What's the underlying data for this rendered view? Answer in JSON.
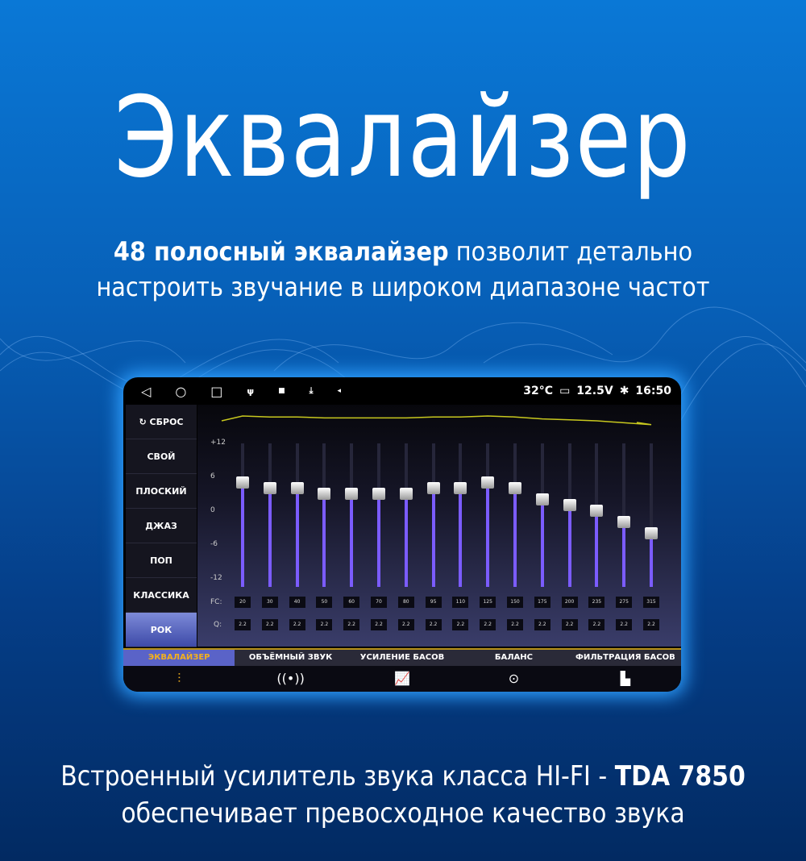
{
  "headline": "Эквалайзер",
  "subtitle": {
    "bold": "48 полосный эквалайзер",
    "rest1": " позволит детально",
    "line2": "настроить звучание в широком диапазоне частот"
  },
  "footer": {
    "line1_pre": "Встроенный усилитель звука класса HI-FI - ",
    "line1_bold": "TDA 7850",
    "line2": "обеспечивает превосходное качество звука"
  },
  "status": {
    "temp": "32°C",
    "voltage": "12.5V",
    "time": "16:50"
  },
  "sidebar": [
    {
      "label": "↻ СБРОС"
    },
    {
      "label": "СВОЙ"
    },
    {
      "label": "ПЛОСКИЙ"
    },
    {
      "label": "ДЖАЗ"
    },
    {
      "label": "ПОП"
    },
    {
      "label": "КЛАССИКА"
    },
    {
      "label": "РОК",
      "active": true
    }
  ],
  "scale": [
    "+12",
    "6",
    "0",
    "-6",
    "-12"
  ],
  "fc_label": "FC:",
  "q_label": "Q:",
  "bands": {
    "fc": [
      "20",
      "30",
      "40",
      "50",
      "60",
      "70",
      "80",
      "95",
      "110",
      "125",
      "150",
      "175",
      "200",
      "235",
      "275",
      "315"
    ],
    "q": [
      "2.2",
      "2.2",
      "2.2",
      "2.2",
      "2.2",
      "2.2",
      "2.2",
      "2.2",
      "2.2",
      "2.2",
      "2.2",
      "2.2",
      "2.2",
      "2.2",
      "2.2",
      "2.2"
    ],
    "gain_db": [
      5,
      4,
      4,
      3,
      3,
      3,
      3,
      4,
      4,
      5,
      4,
      2,
      1,
      0,
      -2,
      -4
    ]
  },
  "tabs": [
    {
      "label": "ЭКВАЛАЙЗЕР",
      "icon": "sliders-icon",
      "active": true
    },
    {
      "label": "ОБЪЁМНЫЙ ЗВУК",
      "icon": "surround-icon"
    },
    {
      "label": "УСИЛЕНИЕ БАСОВ",
      "icon": "bass-boost-icon"
    },
    {
      "label": "БАЛАНС",
      "icon": "balance-icon"
    },
    {
      "label": "ФИЛЬТРАЦИЯ БАСОВ",
      "icon": "bass-filter-icon"
    }
  ],
  "colors": {
    "accent": "#f2b01e",
    "slider": "#7b5cff",
    "curve": "#c8c81e",
    "glow": "#2ea0ff"
  }
}
